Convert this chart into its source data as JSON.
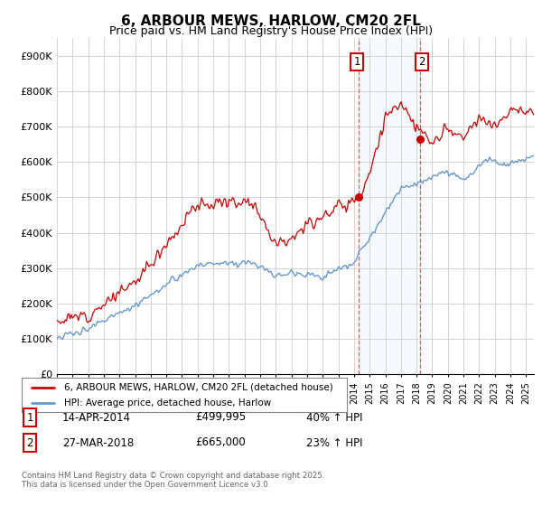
{
  "title": "6, ARBOUR MEWS, HARLOW, CM20 2FL",
  "subtitle": "Price paid vs. HM Land Registry's House Price Index (HPI)",
  "legend_line1": "6, ARBOUR MEWS, HARLOW, CM20 2FL (detached house)",
  "legend_line2": "HPI: Average price, detached house, Harlow",
  "annotation1_date": "14-APR-2014",
  "annotation1_price": "£499,995",
  "annotation1_hpi": "40% ↑ HPI",
  "annotation2_date": "27-MAR-2018",
  "annotation2_price": "£665,000",
  "annotation2_hpi": "23% ↑ HPI",
  "footer": "Contains HM Land Registry data © Crown copyright and database right 2025.\nThis data is licensed under the Open Government Licence v3.0.",
  "red_color": "#cc0000",
  "blue_color": "#6699cc",
  "fill_color": "#cce0f5",
  "vline_color": "#dd4444",
  "bg_color": "#ffffff",
  "grid_color": "#cccccc",
  "ylim": [
    0,
    950000
  ],
  "yticks": [
    0,
    100000,
    200000,
    300000,
    400000,
    500000,
    600000,
    700000,
    800000,
    900000
  ],
  "ytick_labels": [
    "£0",
    "£100K",
    "£200K",
    "£300K",
    "£400K",
    "£500K",
    "£600K",
    "£700K",
    "£800K",
    "£900K"
  ],
  "sale1_year": 2014.28,
  "sale2_year": 2018.24,
  "sale1_price": 499995,
  "sale2_price": 665000
}
